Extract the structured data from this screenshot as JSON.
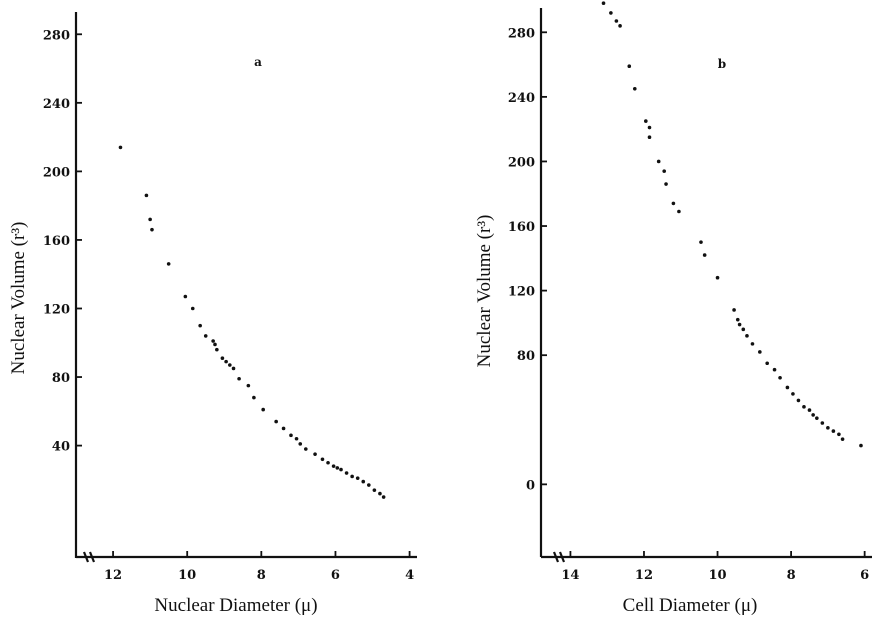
{
  "chart_data": [
    {
      "type": "scatter",
      "panel_label": "a",
      "xlabel": "Nuclear Diameter (μ)",
      "ylabel": "Nuclear Volume (r³)",
      "x_reversed": true,
      "xlim": [
        13,
        3.8
      ],
      "ylim": [
        -25,
        300
      ],
      "x_ticks": [
        12,
        10,
        8,
        6,
        4
      ],
      "y_ticks": [
        40,
        80,
        120,
        160,
        200,
        240,
        280
      ],
      "y_tick_labels": [
        "40",
        "80",
        "120",
        "160",
        "200",
        "240",
        "280"
      ],
      "grid": false,
      "legend": "none",
      "x": [
        11.8,
        11.1,
        11.0,
        10.95,
        10.5,
        10.05,
        9.85,
        9.65,
        9.5,
        9.3,
        9.25,
        9.2,
        9.05,
        8.95,
        8.85,
        8.75,
        8.6,
        8.35,
        8.2,
        7.95,
        7.6,
        7.4,
        7.2,
        7.05,
        6.95,
        6.8,
        6.55,
        6.35,
        6.2,
        6.05,
        5.95,
        5.85,
        5.7,
        5.55,
        5.4,
        5.25,
        5.1,
        4.95,
        4.8,
        4.7
      ],
      "y": [
        214,
        186,
        172,
        166,
        146,
        127,
        120,
        110,
        104,
        101,
        99,
        96,
        91,
        89,
        87,
        85,
        79,
        75,
        68,
        61,
        54,
        50,
        46,
        44,
        41,
        38,
        35,
        32,
        30,
        28,
        27,
        26,
        24,
        22,
        21,
        19,
        17,
        14,
        12,
        10
      ]
    },
    {
      "type": "scatter",
      "panel_label": "b",
      "xlabel": "Cell Diameter (μ)",
      "ylabel": "Nuclear Volume (r³)",
      "x_reversed": true,
      "xlim": [
        14.8,
        5.8
      ],
      "ylim": [
        -45,
        300
      ],
      "x_ticks": [
        14,
        12,
        10,
        8,
        6
      ],
      "y_ticks": [
        0,
        80,
        120,
        160,
        200,
        240,
        280
      ],
      "y_tick_labels": [
        "0",
        "80",
        "120",
        "160",
        "200",
        "240",
        "280"
      ],
      "grid": false,
      "legend": "none",
      "x": [
        13.1,
        12.9,
        12.75,
        12.65,
        12.4,
        12.25,
        11.95,
        11.85,
        11.85,
        11.6,
        11.45,
        11.4,
        11.2,
        11.05,
        10.45,
        10.35,
        10.0,
        9.55,
        9.45,
        9.4,
        9.3,
        9.2,
        9.05,
        8.85,
        8.65,
        8.45,
        8.3,
        8.1,
        7.95,
        7.8,
        7.65,
        7.5,
        7.4,
        7.3,
        7.15,
        7.0,
        6.85,
        6.7,
        6.6,
        6.1
      ],
      "y": [
        298,
        292,
        287,
        284,
        259,
        245,
        225,
        221,
        215,
        200,
        194,
        186,
        174,
        169,
        150,
        142,
        128,
        108,
        102,
        99,
        96,
        92,
        87,
        82,
        75,
        71,
        66,
        60,
        56,
        52,
        48,
        46,
        43,
        41,
        38,
        35,
        33,
        31,
        28,
        24
      ]
    }
  ]
}
